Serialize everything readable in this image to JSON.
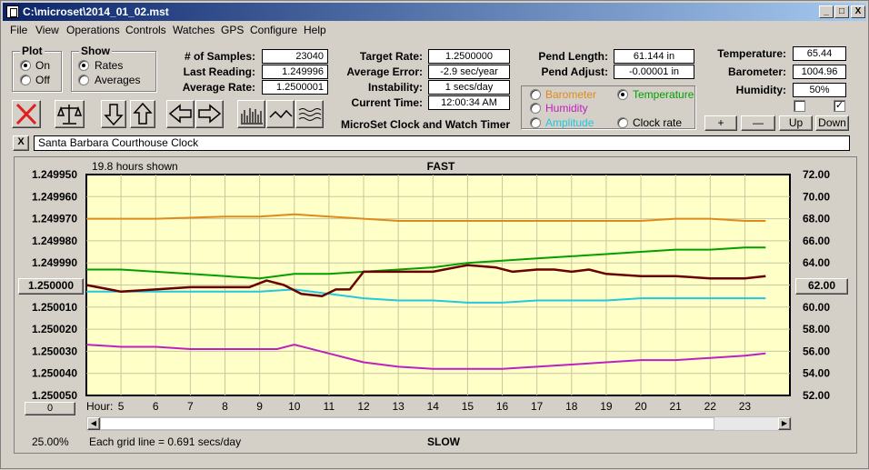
{
  "window": {
    "title": "C:\\microset\\2014_01_02.mst",
    "min_btn": "_",
    "max_btn": "□",
    "close_btn": "X"
  },
  "menu": [
    "File",
    "View",
    "Operations",
    "Controls",
    "Watches",
    "GPS",
    "Configure",
    "Help"
  ],
  "plot_group": {
    "title": "Plot",
    "on": "On",
    "off": "Off",
    "selected": "On"
  },
  "show_group": {
    "title": "Show",
    "rates": "Rates",
    "averages": "Averages",
    "selected": "Rates"
  },
  "stats": {
    "samples_label": "# of Samples:",
    "samples": "23040",
    "last_label": "Last Reading:",
    "last": "1.249996",
    "avg_rate_label": "Average Rate:",
    "avg_rate": "1.2500001",
    "target_label": "Target Rate:",
    "target": "1.2500000",
    "avg_err_label": "Average Error:",
    "avg_err": "-2.9 sec/year",
    "instab_label": "Instability:",
    "instab": "1 secs/day",
    "time_label": "Current Time:",
    "time": "12:00:34 AM",
    "app_name": "MicroSet Clock and Watch Timer",
    "pend_len_label": "Pend Length:",
    "pend_len": "61.144 in",
    "pend_adj_label": "Pend Adjust:",
    "pend_adj": "-0.00001 in",
    "temp_label": "Temperature:",
    "temp": "65.44",
    "baro_label": "Barometer:",
    "baro": "1004.96",
    "hum_label": "Humidity:",
    "hum": "50%"
  },
  "aux_options": {
    "barometer": "Barometer",
    "temperature": "Temperature",
    "humidity": "Humidity",
    "amplitude": "Amplitude",
    "clock_rate": "Clock rate",
    "selected": "Temperature"
  },
  "colors": {
    "barometer": "#e08a1e",
    "temperature": "#00a000",
    "humidity": "#c020c0",
    "amplitude": "#20c8e0",
    "rate": "#6b0000",
    "plot_bg": "#ffffc8"
  },
  "right_buttons": {
    "plus": "+",
    "minus": "—",
    "up": "Up",
    "down": "Down",
    "check2": "✓"
  },
  "watch_name": "Santa Barbara Courthouse Clock",
  "close_x": "X",
  "chart_data": {
    "type": "line",
    "title_top": "FAST",
    "title_bottom": "SLOW",
    "hours_shown": "19.8 hours shown",
    "grid_note": "Each grid line = 0.691 secs/day",
    "zoom": "25.00%",
    "x_label": "Hour:",
    "x_ticks": [
      5,
      6,
      7,
      8,
      9,
      10,
      11,
      12,
      13,
      14,
      15,
      16,
      17,
      18,
      19,
      20,
      21,
      22,
      23
    ],
    "xlim": [
      4,
      24.3
    ],
    "y_left_ticks": [
      "1.249950",
      "1.249960",
      "1.249970",
      "1.249980",
      "1.249990",
      "1.250000",
      "1.250010",
      "1.250020",
      "1.250030",
      "1.250040",
      "1.250050"
    ],
    "y_right_ticks": [
      "72.00",
      "70.00",
      "68.00",
      "66.00",
      "64.00",
      "62.00",
      "60.00",
      "58.00",
      "56.00",
      "54.00",
      "52.00"
    ],
    "left_center_box": "1.250000",
    "right_center_box": "62.00",
    "scroll_box": "0",
    "ylim_left": [
      1.24995,
      1.25005
    ],
    "ylim_right": [
      52,
      72
    ],
    "series": [
      {
        "key": "barometer",
        "x": [
          4.0,
          6,
          8,
          9,
          10,
          11,
          12,
          13,
          14,
          15,
          16,
          17,
          18,
          19,
          20,
          21,
          22,
          23,
          23.6
        ],
        "y": [
          1.24997,
          1.24997,
          1.249969,
          1.249969,
          1.249968,
          1.249969,
          1.24997,
          1.249971,
          1.249971,
          1.249971,
          1.249971,
          1.249971,
          1.249971,
          1.249971,
          1.249971,
          1.24997,
          1.24997,
          1.249971,
          1.249971
        ]
      },
      {
        "key": "temperature",
        "x": [
          4.0,
          5,
          6,
          7,
          8,
          9,
          10,
          11,
          12,
          13,
          14,
          15,
          16,
          17,
          18,
          19,
          20,
          21,
          22,
          23,
          23.6
        ],
        "y": [
          1.249993,
          1.249993,
          1.249994,
          1.249995,
          1.249996,
          1.249997,
          1.249995,
          1.249995,
          1.249994,
          1.249993,
          1.249992,
          1.24999,
          1.249989,
          1.249988,
          1.249987,
          1.249986,
          1.249985,
          1.249984,
          1.249984,
          1.249983,
          1.249983
        ]
      },
      {
        "key": "amplitude",
        "x": [
          4.0,
          5,
          6,
          7,
          8,
          9,
          10,
          11,
          12,
          13,
          14,
          15,
          16,
          17,
          18,
          19,
          20,
          21,
          22,
          23,
          23.6
        ],
        "y": [
          1.250003,
          1.250003,
          1.250003,
          1.250003,
          1.250003,
          1.250003,
          1.250002,
          1.250004,
          1.250006,
          1.250007,
          1.250007,
          1.250008,
          1.250008,
          1.250007,
          1.250007,
          1.250007,
          1.250006,
          1.250006,
          1.250006,
          1.250006,
          1.250006
        ]
      },
      {
        "key": "humidity",
        "x": [
          4.0,
          5,
          6,
          7,
          8,
          9,
          9.5,
          10,
          11,
          12,
          13,
          14,
          15,
          16,
          17,
          18,
          19,
          20,
          21,
          22,
          23,
          23.6
        ],
        "y": [
          1.250027,
          1.250028,
          1.250028,
          1.250029,
          1.250029,
          1.250029,
          1.250029,
          1.250027,
          1.250031,
          1.250035,
          1.250037,
          1.250038,
          1.250038,
          1.250038,
          1.250037,
          1.250036,
          1.250035,
          1.250034,
          1.250034,
          1.250033,
          1.250032,
          1.250031
        ]
      },
      {
        "key": "rate",
        "x": [
          4.0,
          5,
          6,
          7,
          8,
          8.7,
          9.2,
          9.7,
          10.2,
          10.8,
          11.2,
          11.6,
          12,
          12.5,
          13,
          14,
          15,
          15.8,
          16.3,
          17,
          17.5,
          18,
          18.5,
          19,
          20,
          21,
          22,
          23,
          23.6
        ],
        "y": [
          1.25,
          1.250003,
          1.250002,
          1.250001,
          1.250001,
          1.250001,
          1.249998,
          1.25,
          1.250004,
          1.250005,
          1.250002,
          1.250002,
          1.249994,
          1.249994,
          1.249994,
          1.249994,
          1.249991,
          1.249992,
          1.249994,
          1.249993,
          1.249993,
          1.249994,
          1.249993,
          1.249995,
          1.249996,
          1.249996,
          1.249997,
          1.249997,
          1.249996
        ]
      }
    ]
  }
}
